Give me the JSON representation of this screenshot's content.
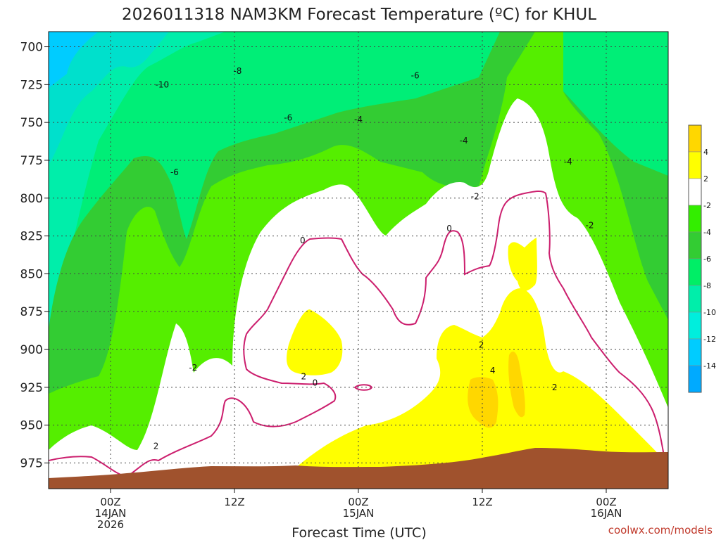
{
  "chart_data": {
    "type": "contour",
    "title": "2026011318 NAM3KM Forecast Temperature (ºC) for KHUL",
    "xlabel": "Forecast Time (UTC)",
    "ylabel": "",
    "y_ticks": [
      700,
      725,
      750,
      775,
      800,
      825,
      850,
      875,
      900,
      925,
      950,
      975
    ],
    "y_range_hpa": [
      690,
      992
    ],
    "x_ticks": [
      {
        "label": "00Z",
        "line2": "14JAN",
        "line3": "2026",
        "hour": 6
      },
      {
        "label": "12Z",
        "line2": "",
        "line3": "",
        "hour": 18
      },
      {
        "label": "00Z",
        "line2": "15JAN",
        "line3": "",
        "hour": 30
      },
      {
        "label": "12Z",
        "line2": "",
        "line3": "",
        "hour": 42
      },
      {
        "label": "00Z",
        "line2": "16JAN",
        "line3": "",
        "hour": 54
      }
    ],
    "x_range_hours": [
      0,
      60
    ],
    "colorbar": {
      "labels": [
        "4",
        "2",
        "-2",
        "-4",
        "-6",
        "-8",
        "-10",
        "-12",
        "-14"
      ],
      "colors": [
        "#ffd700",
        "#ffff00",
        "#ffffff",
        "#33ee00",
        "#33cc33",
        "#00ee66",
        "#00eeaa",
        "#00eedd",
        "#00ccff",
        "#00aaff"
      ]
    },
    "contour_labels": [
      {
        "text": "-10",
        "hour": 11,
        "hpa": 725
      },
      {
        "text": "-8",
        "hour": 18.3,
        "hpa": 716
      },
      {
        "text": "-6",
        "hour": 35.5,
        "hpa": 719
      },
      {
        "text": "-6",
        "hour": 23.2,
        "hpa": 747
      },
      {
        "text": "-4",
        "hour": 30,
        "hpa": 748
      },
      {
        "text": "-4",
        "hour": 40.2,
        "hpa": 762
      },
      {
        "text": "-6",
        "hour": 12.2,
        "hpa": 783
      },
      {
        "text": "-4",
        "hour": 50.3,
        "hpa": 776
      },
      {
        "text": "-2",
        "hour": 41.3,
        "hpa": 799
      },
      {
        "text": "-2",
        "hour": 52.4,
        "hpa": 818
      },
      {
        "text": "0",
        "hour": 24.6,
        "hpa": 828
      },
      {
        "text": "0",
        "hour": 38.8,
        "hpa": 820
      },
      {
        "text": "-2",
        "hour": 14,
        "hpa": 912
      },
      {
        "text": "2",
        "hour": 41.9,
        "hpa": 897
      },
      {
        "text": "4",
        "hour": 43,
        "hpa": 914
      },
      {
        "text": "2",
        "hour": 24.7,
        "hpa": 918
      },
      {
        "text": "0",
        "hour": 25.8,
        "hpa": 922
      },
      {
        "text": "2",
        "hour": 10.4,
        "hpa": 964
      },
      {
        "text": "2",
        "hour": 49,
        "hpa": 925
      }
    ]
  },
  "credit": "coolwx.com/models"
}
